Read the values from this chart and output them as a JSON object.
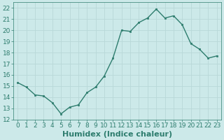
{
  "x": [
    0,
    1,
    2,
    3,
    4,
    5,
    6,
    7,
    8,
    9,
    10,
    11,
    12,
    13,
    14,
    15,
    16,
    17,
    18,
    19,
    20,
    21,
    22,
    23
  ],
  "y": [
    15.3,
    14.9,
    14.2,
    14.1,
    13.5,
    12.5,
    13.1,
    13.3,
    14.4,
    14.9,
    15.9,
    17.5,
    20.0,
    19.9,
    20.7,
    21.1,
    21.9,
    21.1,
    21.3,
    20.5,
    18.8,
    18.3,
    17.5,
    17.7
  ],
  "line_color": "#2e7d6e",
  "marker": "s",
  "marker_size": 2.0,
  "linewidth": 1.0,
  "xlabel": "Humidex (Indice chaleur)",
  "xlim": [
    -0.5,
    23.5
  ],
  "ylim": [
    12,
    22.5
  ],
  "yticks": [
    12,
    13,
    14,
    15,
    16,
    17,
    18,
    19,
    20,
    21,
    22
  ],
  "xticks": [
    0,
    1,
    2,
    3,
    4,
    5,
    6,
    7,
    8,
    9,
    10,
    11,
    12,
    13,
    14,
    15,
    16,
    17,
    18,
    19,
    20,
    21,
    22,
    23
  ],
  "xtick_labels": [
    "0",
    "1",
    "2",
    "3",
    "4",
    "5",
    "6",
    "7",
    "8",
    "9",
    "10",
    "11",
    "12",
    "13",
    "14",
    "15",
    "16",
    "17",
    "18",
    "19",
    "20",
    "21",
    "22",
    "23"
  ],
  "bg_color": "#cce9e9",
  "grid_color": "#b8d8d8",
  "tick_color": "#2e7d6e",
  "label_color": "#2e7d6e",
  "spine_color": "#2e7d6e",
  "tick_fontsize": 6.5,
  "xlabel_fontsize": 8.0
}
